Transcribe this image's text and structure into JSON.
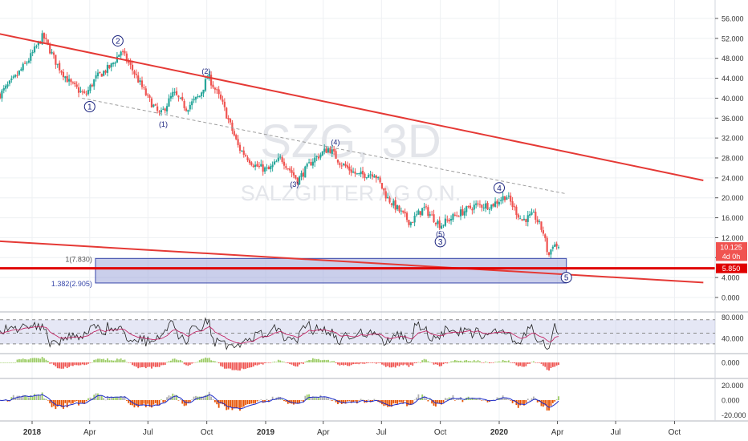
{
  "chart_data": [
    {
      "type": "candlestick",
      "title": "",
      "watermark": {
        "symbol": "SZG, 3D",
        "name": "SALZGITTER AG O.N."
      },
      "x_ticks": [
        "2018",
        "Apr",
        "Jul",
        "Oct",
        "2019",
        "Apr",
        "Jul",
        "Oct",
        "2020",
        "Apr",
        "Jul",
        "Oct"
      ],
      "x_tick_dates": [
        "2018-01-01",
        "2018-04-01",
        "2018-07-01",
        "2018-10-01",
        "2019-01-01",
        "2019-04-01",
        "2019-07-01",
        "2019-10-01",
        "2020-01-01",
        "2020-04-01",
        "2020-07-01",
        "2020-10-01"
      ],
      "y_ticks": [
        "56.000",
        "52.000",
        "48.000",
        "44.000",
        "40.000",
        "36.000",
        "32.000",
        "28.000",
        "24.000",
        "20.000",
        "16.000",
        "12.000",
        "8.000",
        "4.000",
        "0.000"
      ],
      "ylim": [
        -1.5,
        58.5
      ],
      "price_path": [
        [
          "2017-10-20",
          37.5
        ],
        [
          "2017-11-10",
          40.5
        ],
        [
          "2017-12-05",
          44.0
        ],
        [
          "2017-12-28",
          48.0
        ],
        [
          "2018-01-18",
          52.5
        ],
        [
          "2018-02-08",
          47.0
        ],
        [
          "2018-03-01",
          43.0
        ],
        [
          "2018-03-25",
          40.5
        ],
        [
          "2018-04-10",
          44.0
        ],
        [
          "2018-05-05",
          46.5
        ],
        [
          "2018-05-20",
          49.5
        ],
        [
          "2018-06-10",
          45.0
        ],
        [
          "2018-07-01",
          40.0
        ],
        [
          "2018-07-20",
          36.5
        ],
        [
          "2018-08-10",
          41.0
        ],
        [
          "2018-08-30",
          38.0
        ],
        [
          "2018-09-20",
          40.5
        ],
        [
          "2018-10-03",
          44.5
        ],
        [
          "2018-10-25",
          39.0
        ],
        [
          "2018-11-20",
          30.0
        ],
        [
          "2018-12-15",
          26.5
        ],
        [
          "2019-01-05",
          25.5
        ],
        [
          "2019-01-25",
          28.0
        ],
        [
          "2019-02-20",
          23.5
        ],
        [
          "2019-03-15",
          27.5
        ],
        [
          "2019-04-10",
          30.0
        ],
        [
          "2019-04-28",
          27.0
        ],
        [
          "2019-05-25",
          24.5
        ],
        [
          "2019-06-20",
          25.0
        ],
        [
          "2019-07-10",
          20.0
        ],
        [
          "2019-08-15",
          15.0
        ],
        [
          "2019-09-05",
          18.0
        ],
        [
          "2019-10-01",
          14.5
        ],
        [
          "2019-10-25",
          16.5
        ],
        [
          "2019-11-25",
          18.5
        ],
        [
          "2019-12-20",
          18.5
        ],
        [
          "2020-01-12",
          20.5
        ],
        [
          "2020-02-05",
          15.5
        ],
        [
          "2020-02-25",
          16.5
        ],
        [
          "2020-03-10",
          13.0
        ],
        [
          "2020-03-18",
          8.2
        ],
        [
          "2020-03-25",
          10.8
        ],
        [
          "2020-04-03",
          10.1
        ]
      ],
      "trendlines": {
        "upper_red": {
          "from": [
            "2017-10-01",
            54.0
          ],
          "to": [
            "2020-11-15",
            23.5
          ]
        },
        "lower_red": {
          "from": [
            "2017-10-01",
            11.6
          ],
          "to": [
            "2020-11-15",
            3.0
          ]
        },
        "horizontal_red": 5.85,
        "dashed_gray": {
          "from": [
            "2018-03-20",
            40.0
          ],
          "to": [
            "2020-04-15",
            20.8
          ]
        }
      },
      "fib_zone": {
        "from": "2018-04-10",
        "to": "2020-04-15",
        "top": 7.83,
        "bottom": 2.905,
        "labels": [
          "1(7.830)",
          "1.382(2.905)"
        ]
      },
      "wave_labels": [
        {
          "text": "1",
          "date": "2018-04-01",
          "price": 38.3,
          "circled": true
        },
        {
          "text": "2",
          "date": "2018-05-15",
          "price": 51.5,
          "circled": true
        },
        {
          "text": "(1)",
          "date": "2018-07-25",
          "price": 34.8,
          "circled": false
        },
        {
          "text": "(2)",
          "date": "2018-09-30",
          "price": 45.5,
          "circled": false
        },
        {
          "text": "(3)",
          "date": "2019-02-15",
          "price": 22.8,
          "circled": false
        },
        {
          "text": "(4)",
          "date": "2019-04-20",
          "price": 31.2,
          "circled": false
        },
        {
          "text": "(5)",
          "date": "2019-10-01",
          "price": 12.8,
          "circled": false
        },
        {
          "text": "3",
          "date": "2019-10-01",
          "price": 11.2,
          "circled": true
        },
        {
          "text": "4",
          "date": "2020-01-01",
          "price": 22.0,
          "circled": true
        },
        {
          "text": "5",
          "date": "2020-04-15",
          "price": 4.0,
          "circled": true
        }
      ],
      "price_tags": [
        {
          "text": "10.125",
          "price": 10.125,
          "color": "#f05350"
        },
        {
          "text": "4d 0h",
          "price": 8.3,
          "color": "#f05350"
        },
        {
          "text": "5.850",
          "price": 5.85,
          "color": "#e00000"
        }
      ]
    },
    {
      "type": "line",
      "name": "RSI-style oscillator",
      "y_ticks": [
        "80.000",
        "40.000"
      ],
      "ylim": [
        12,
        88
      ],
      "band": [
        30,
        75
      ],
      "dashed_levels": [
        30,
        50,
        75
      ]
    },
    {
      "type": "bar",
      "name": "histogram",
      "y_ticks": [
        "0.000"
      ],
      "ylim": [
        -6,
        3
      ]
    },
    {
      "type": "bar",
      "name": "momentum histogram with signal",
      "y_ticks": [
        "20.000",
        "0.000",
        "-20.000"
      ],
      "ylim": [
        -28,
        28
      ]
    }
  ],
  "colors": {
    "up": "#26a69a",
    "down": "#ef5350",
    "trend": "#e53935",
    "fib_fill": "#9fa8da",
    "fib_text": "#3949ab",
    "osc": "#222222",
    "osc_ma": "#c2185b",
    "osc_band": "#c5cae9",
    "hist_up": "#9ccc65",
    "hist_gray": "#b0b0b0",
    "hist_down": "#e65100",
    "signal": "#1e2cc8"
  }
}
